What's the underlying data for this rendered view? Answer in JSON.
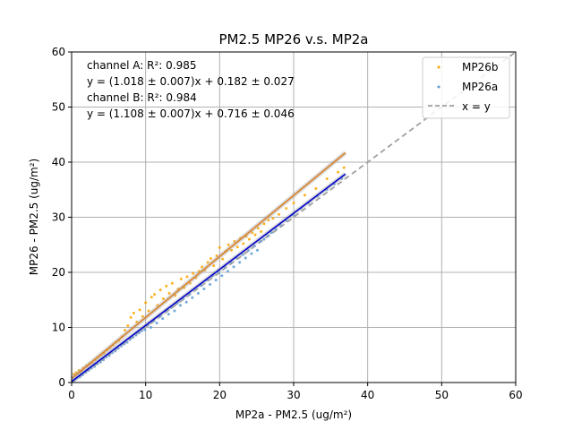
{
  "chart_data": {
    "type": "scatter",
    "title": "PM2.5 MP26 v.s. MP2a",
    "xlabel": "MP2a - PM2.5 (ug/m²)",
    "ylabel": "MP26 - PM2.5 (ug/m²)",
    "xlim": [
      0,
      60
    ],
    "ylim": [
      0,
      60
    ],
    "xticks": [
      "0",
      "10",
      "20",
      "30",
      "40",
      "50",
      "60"
    ],
    "yticks": [
      "0",
      "10",
      "20",
      "30",
      "40",
      "50",
      "60"
    ],
    "grid": true,
    "legend_position": "top-right",
    "annotations": [
      "channel A: R²: 0.985",
      "y = (1.018 ± 0.007)x + 0.182 ± 0.027",
      "channel B: R²: 0.984",
      "y = (1.108 ± 0.007)x + 0.716 ± 0.046"
    ],
    "series": [
      {
        "name": "MP26b",
        "color": "#ffa500",
        "fit": {
          "slope": 1.108,
          "intercept": 0.716,
          "x_range": [
            0,
            37
          ],
          "color": "#d9822b"
        },
        "points": [
          [
            0.3,
            1.5
          ],
          [
            0.6,
            1.8
          ],
          [
            1.0,
            2.2
          ],
          [
            1.3,
            2.1
          ],
          [
            1.6,
            2.6
          ],
          [
            2.0,
            3.0
          ],
          [
            2.4,
            3.4
          ],
          [
            2.8,
            3.6
          ],
          [
            3.2,
            4.1
          ],
          [
            3.6,
            4.6
          ],
          [
            4.0,
            5.0
          ],
          [
            4.4,
            5.3
          ],
          [
            4.8,
            5.9
          ],
          [
            5.2,
            6.3
          ],
          [
            5.6,
            6.8
          ],
          [
            6.0,
            7.3
          ],
          [
            6.4,
            7.6
          ],
          [
            6.8,
            8.3
          ],
          [
            7.2,
            9.5
          ],
          [
            7.6,
            10.3
          ],
          [
            8.0,
            11.8
          ],
          [
            8.4,
            12.6
          ],
          [
            8.8,
            11.0
          ],
          [
            9.2,
            13.2
          ],
          [
            9.6,
            12.0
          ],
          [
            10.0,
            14.5
          ],
          [
            10.4,
            13.0
          ],
          [
            10.8,
            15.5
          ],
          [
            11.2,
            16.0
          ],
          [
            11.6,
            14.0
          ],
          [
            12.0,
            16.8
          ],
          [
            12.4,
            15.2
          ],
          [
            12.8,
            17.5
          ],
          [
            13.2,
            16.2
          ],
          [
            13.6,
            18.0
          ],
          [
            14.0,
            15.8
          ],
          [
            14.4,
            17.0
          ],
          [
            14.8,
            18.8
          ],
          [
            15.2,
            17.2
          ],
          [
            15.6,
            19.2
          ],
          [
            16.0,
            18.0
          ],
          [
            16.4,
            19.8
          ],
          [
            16.8,
            19.0
          ],
          [
            17.2,
            20.2
          ],
          [
            17.6,
            21.0
          ],
          [
            18.0,
            20.4
          ],
          [
            18.4,
            21.8
          ],
          [
            18.8,
            22.5
          ],
          [
            19.2,
            21.2
          ],
          [
            19.6,
            23.0
          ],
          [
            20.0,
            24.5
          ],
          [
            20.4,
            22.4
          ],
          [
            20.8,
            23.8
          ],
          [
            21.2,
            25.0
          ],
          [
            21.6,
            24.0
          ],
          [
            22.0,
            25.6
          ],
          [
            22.4,
            24.6
          ],
          [
            22.8,
            26.2
          ],
          [
            23.2,
            25.2
          ],
          [
            23.6,
            26.5
          ],
          [
            24.0,
            26.0
          ],
          [
            24.4,
            27.2
          ],
          [
            24.8,
            26.8
          ],
          [
            25.2,
            28.0
          ],
          [
            25.6,
            27.4
          ],
          [
            26.0,
            28.8
          ],
          [
            26.6,
            29.5
          ],
          [
            27.2,
            29.8
          ],
          [
            28.0,
            30.5
          ],
          [
            29.0,
            31.6
          ],
          [
            30.0,
            32.6
          ],
          [
            31.5,
            34.0
          ],
          [
            33.0,
            35.2
          ],
          [
            34.5,
            37.0
          ],
          [
            36.0,
            38.2
          ],
          [
            36.8,
            39.0
          ]
        ]
      },
      {
        "name": "MP26a",
        "color": "#5b9bd5",
        "fit": {
          "slope": 1.018,
          "intercept": 0.182,
          "x_range": [
            0,
            37
          ],
          "color": "#0000cc"
        },
        "points": [
          [
            0.3,
            0.4
          ],
          [
            0.7,
            0.8
          ],
          [
            1.1,
            1.0
          ],
          [
            1.5,
            1.4
          ],
          [
            1.9,
            1.8
          ],
          [
            2.3,
            2.2
          ],
          [
            2.7,
            2.6
          ],
          [
            3.1,
            2.9
          ],
          [
            3.5,
            3.4
          ],
          [
            3.9,
            3.7
          ],
          [
            4.3,
            4.1
          ],
          [
            4.7,
            4.6
          ],
          [
            5.1,
            4.9
          ],
          [
            5.5,
            5.4
          ],
          [
            5.9,
            5.7
          ],
          [
            6.3,
            6.2
          ],
          [
            6.7,
            6.6
          ],
          [
            7.1,
            7.0
          ],
          [
            7.5,
            7.3
          ],
          [
            7.9,
            7.8
          ],
          [
            8.3,
            8.2
          ],
          [
            8.7,
            8.6
          ],
          [
            9.1,
            9.0
          ],
          [
            9.5,
            9.4
          ],
          [
            9.9,
            9.6
          ],
          [
            10.3,
            10.4
          ],
          [
            10.7,
            10.0
          ],
          [
            11.1,
            11.2
          ],
          [
            11.5,
            10.8
          ],
          [
            11.9,
            12.0
          ],
          [
            12.3,
            11.6
          ],
          [
            12.7,
            13.0
          ],
          [
            13.1,
            12.4
          ],
          [
            13.5,
            13.6
          ],
          [
            13.9,
            13.0
          ],
          [
            14.3,
            14.4
          ],
          [
            14.7,
            14.0
          ],
          [
            15.1,
            15.2
          ],
          [
            15.5,
            14.6
          ],
          [
            15.9,
            16.0
          ],
          [
            16.3,
            15.4
          ],
          [
            16.7,
            17.0
          ],
          [
            17.1,
            16.2
          ],
          [
            17.5,
            17.6
          ],
          [
            17.9,
            17.0
          ],
          [
            18.3,
            18.6
          ],
          [
            18.7,
            17.8
          ],
          [
            19.1,
            19.4
          ],
          [
            19.5,
            18.6
          ],
          [
            19.9,
            20.0
          ],
          [
            20.3,
            19.4
          ],
          [
            20.7,
            21.0
          ],
          [
            21.1,
            20.2
          ],
          [
            21.5,
            21.8
          ],
          [
            21.9,
            21.0
          ],
          [
            22.3,
            22.6
          ],
          [
            22.7,
            21.8
          ],
          [
            23.1,
            23.2
          ],
          [
            23.5,
            22.6
          ],
          [
            23.9,
            24.0
          ],
          [
            24.3,
            23.4
          ],
          [
            24.7,
            24.8
          ],
          [
            25.1,
            24.0
          ],
          [
            25.5,
            25.6
          ],
          [
            26.0,
            26.0
          ],
          [
            26.5,
            26.6
          ],
          [
            27.0,
            27.2
          ],
          [
            27.6,
            27.8
          ],
          [
            28.2,
            28.6
          ],
          [
            29.0,
            29.4
          ],
          [
            30.0,
            30.4
          ],
          [
            31.0,
            31.6
          ],
          [
            32.0,
            32.6
          ],
          [
            33.2,
            33.8
          ],
          [
            34.5,
            35.0
          ],
          [
            35.5,
            36.0
          ],
          [
            36.5,
            37.0
          ]
        ]
      }
    ],
    "reference_line": {
      "name": "x = y",
      "color": "#a0a0a0",
      "style": "dashed"
    }
  }
}
